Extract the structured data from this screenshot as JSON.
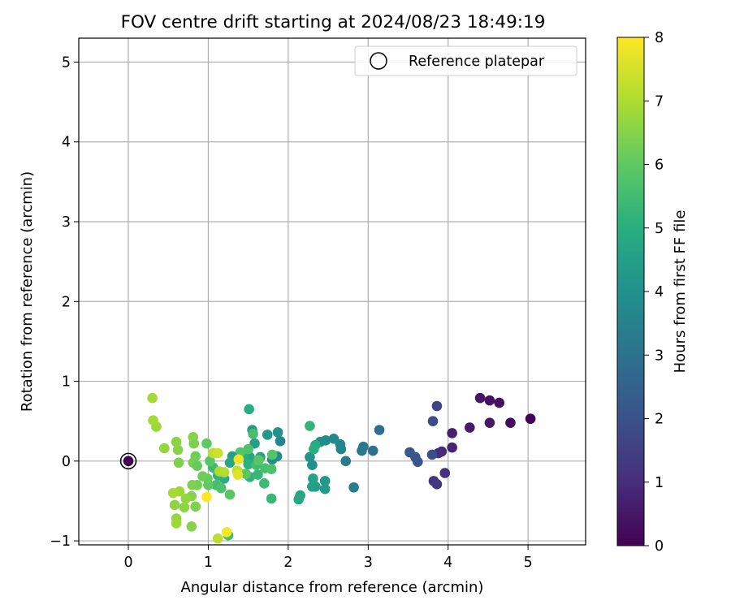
{
  "chart_data": {
    "type": "scatter",
    "title": "FOV centre drift starting at 2024/08/23 18:49:19",
    "xlabel": "Angular distance from reference (arcmin)",
    "ylabel": "Rotation from reference (arcmin)",
    "xlim": [
      -0.62,
      5.72
    ],
    "ylim": [
      -1.05,
      5.3
    ],
    "xticks": [
      0,
      1,
      2,
      3,
      4,
      5
    ],
    "yticks": [
      -1,
      0,
      1,
      2,
      3,
      4,
      5
    ],
    "xtick_labels": [
      "0",
      "1",
      "2",
      "3",
      "4",
      "5"
    ],
    "ytick_labels": [
      "−1",
      "0",
      "1",
      "2",
      "3",
      "4",
      "5"
    ],
    "grid": true,
    "legend": {
      "placement": "top-right",
      "entries": [
        "Reference platepar"
      ]
    },
    "reference_point": {
      "x": 0,
      "y": 0
    },
    "colorbar": {
      "label": "Hours from first FF file",
      "min": 0,
      "max": 8,
      "ticks": [
        0,
        1,
        2,
        3,
        4,
        5,
        6,
        7,
        8
      ],
      "tick_labels": [
        "0",
        "1",
        "2",
        "3",
        "4",
        "5",
        "6",
        "7",
        "8"
      ],
      "colormap": [
        "#440154",
        "#472d7b",
        "#3b528b",
        "#2c728e",
        "#21918c",
        "#28ae80",
        "#5ec962",
        "#addc30",
        "#fde725"
      ]
    },
    "points": [
      {
        "x": 0.0,
        "y": 0.0,
        "t": 0.0
      },
      {
        "x": 5.03,
        "y": 0.53,
        "t": 0.1
      },
      {
        "x": 4.78,
        "y": 0.48,
        "t": 0.2
      },
      {
        "x": 4.64,
        "y": 0.73,
        "t": 0.3
      },
      {
        "x": 4.52,
        "y": 0.76,
        "t": 0.35
      },
      {
        "x": 4.4,
        "y": 0.79,
        "t": 0.45
      },
      {
        "x": 4.52,
        "y": 0.48,
        "t": 0.5
      },
      {
        "x": 4.27,
        "y": 0.42,
        "t": 0.6
      },
      {
        "x": 4.05,
        "y": 0.35,
        "t": 0.7
      },
      {
        "x": 4.05,
        "y": 0.17,
        "t": 0.8
      },
      {
        "x": 3.92,
        "y": 0.12,
        "t": 0.9
      },
      {
        "x": 3.88,
        "y": 0.1,
        "t": 1.0
      },
      {
        "x": 3.96,
        "y": -0.15,
        "t": 1.1
      },
      {
        "x": 3.82,
        "y": -0.25,
        "t": 1.2
      },
      {
        "x": 3.86,
        "y": -0.29,
        "t": 1.3
      },
      {
        "x": 3.86,
        "y": 0.69,
        "t": 1.6
      },
      {
        "x": 3.81,
        "y": 0.5,
        "t": 1.8
      },
      {
        "x": 3.8,
        "y": 0.08,
        "t": 1.9
      },
      {
        "x": 3.62,
        "y": -0.01,
        "t": 2.0
      },
      {
        "x": 3.59,
        "y": 0.05,
        "t": 2.1
      },
      {
        "x": 3.52,
        "y": 0.11,
        "t": 2.2
      },
      {
        "x": 3.14,
        "y": 0.39,
        "t": 2.8
      },
      {
        "x": 3.06,
        "y": 0.13,
        "t": 3.0
      },
      {
        "x": 2.94,
        "y": 0.18,
        "t": 3.1
      },
      {
        "x": 2.92,
        "y": 0.13,
        "t": 3.2
      },
      {
        "x": 2.72,
        "y": 0.0,
        "t": 3.3
      },
      {
        "x": 2.82,
        "y": -0.33,
        "t": 3.4
      },
      {
        "x": 2.66,
        "y": 0.15,
        "t": 3.5
      },
      {
        "x": 2.65,
        "y": 0.21,
        "t": 3.6
      },
      {
        "x": 2.57,
        "y": 0.28,
        "t": 3.7
      },
      {
        "x": 2.47,
        "y": 0.26,
        "t": 3.8
      },
      {
        "x": 2.4,
        "y": 0.24,
        "t": 3.9
      },
      {
        "x": 2.3,
        "y": -0.05,
        "t": 4.0
      },
      {
        "x": 2.27,
        "y": 0.05,
        "t": 4.1
      },
      {
        "x": 2.46,
        "y": -0.25,
        "t": 4.2
      },
      {
        "x": 2.46,
        "y": -0.35,
        "t": 4.3
      },
      {
        "x": 2.34,
        "y": -0.32,
        "t": 4.4
      },
      {
        "x": 2.3,
        "y": -0.32,
        "t": 4.5
      },
      {
        "x": 2.31,
        "y": -0.22,
        "t": 4.6
      },
      {
        "x": 2.15,
        "y": -0.43,
        "t": 4.7
      },
      {
        "x": 2.13,
        "y": -0.48,
        "t": 4.8
      },
      {
        "x": 2.34,
        "y": 0.2,
        "t": 4.9
      },
      {
        "x": 2.32,
        "y": 0.15,
        "t": 5.0
      },
      {
        "x": 2.27,
        "y": 0.44,
        "t": 5.2
      },
      {
        "x": 1.9,
        "y": 0.25,
        "t": 3.6
      },
      {
        "x": 1.86,
        "y": 0.06,
        "t": 3.8
      },
      {
        "x": 1.8,
        "y": 0.02,
        "t": 3.9
      },
      {
        "x": 1.87,
        "y": 0.36,
        "t": 4.0
      },
      {
        "x": 1.74,
        "y": 0.33,
        "t": 4.2
      },
      {
        "x": 1.55,
        "y": 0.39,
        "t": 4.4
      },
      {
        "x": 1.58,
        "y": 0.22,
        "t": 4.5
      },
      {
        "x": 1.51,
        "y": 0.65,
        "t": 5.0
      },
      {
        "x": 1.65,
        "y": 0.05,
        "t": 4.6
      },
      {
        "x": 1.52,
        "y": 0.05,
        "t": 4.8
      },
      {
        "x": 1.44,
        "y": 0.05,
        "t": 5.0
      },
      {
        "x": 1.5,
        "y": -0.04,
        "t": 5.1
      },
      {
        "x": 1.52,
        "y": -0.2,
        "t": 5.2
      },
      {
        "x": 1.62,
        "y": -0.17,
        "t": 5.3
      },
      {
        "x": 1.7,
        "y": -0.28,
        "t": 5.4
      },
      {
        "x": 1.79,
        "y": -0.47,
        "t": 5.3
      },
      {
        "x": 1.6,
        "y": -0.05,
        "t": 5.5
      },
      {
        "x": 1.71,
        "y": -0.09,
        "t": 5.6
      },
      {
        "x": 1.79,
        "y": -0.1,
        "t": 5.7
      },
      {
        "x": 1.8,
        "y": 0.08,
        "t": 5.8
      },
      {
        "x": 1.63,
        "y": 0.01,
        "t": 5.9
      },
      {
        "x": 1.56,
        "y": 0.34,
        "t": 5.6
      },
      {
        "x": 1.5,
        "y": 0.15,
        "t": 5.7
      },
      {
        "x": 1.4,
        "y": 0.11,
        "t": 5.8
      },
      {
        "x": 1.47,
        "y": -0.16,
        "t": 5.9
      },
      {
        "x": 1.37,
        "y": -0.13,
        "t": 6.0
      },
      {
        "x": 1.3,
        "y": 0.06,
        "t": 4.5
      },
      {
        "x": 1.27,
        "y": -0.02,
        "t": 4.8
      },
      {
        "x": 1.2,
        "y": -0.22,
        "t": 5.0
      },
      {
        "x": 1.12,
        "y": -0.18,
        "t": 5.2
      },
      {
        "x": 1.06,
        "y": -0.08,
        "t": 5.4
      },
      {
        "x": 1.1,
        "y": -0.3,
        "t": 5.5
      },
      {
        "x": 1.16,
        "y": -0.34,
        "t": 5.7
      },
      {
        "x": 1.27,
        "y": -0.42,
        "t": 5.9
      },
      {
        "x": 1.25,
        "y": -0.93,
        "t": 5.5
      },
      {
        "x": 1.0,
        "y": -0.3,
        "t": 6.0
      },
      {
        "x": 0.99,
        "y": -0.22,
        "t": 6.1
      },
      {
        "x": 0.93,
        "y": -0.19,
        "t": 6.2
      },
      {
        "x": 0.86,
        "y": -0.3,
        "t": 6.3
      },
      {
        "x": 0.8,
        "y": -0.3,
        "t": 6.4
      },
      {
        "x": 0.79,
        "y": -0.44,
        "t": 6.5
      },
      {
        "x": 0.84,
        "y": -0.57,
        "t": 6.4
      },
      {
        "x": 0.79,
        "y": -0.82,
        "t": 6.5
      },
      {
        "x": 0.7,
        "y": -0.58,
        "t": 6.6
      },
      {
        "x": 0.72,
        "y": -0.47,
        "t": 6.7
      },
      {
        "x": 0.64,
        "y": -0.38,
        "t": 6.8
      },
      {
        "x": 0.58,
        "y": -0.55,
        "t": 6.6
      },
      {
        "x": 0.6,
        "y": -0.72,
        "t": 6.7
      },
      {
        "x": 0.6,
        "y": -0.78,
        "t": 6.8
      },
      {
        "x": 0.56,
        "y": -0.4,
        "t": 6.9
      },
      {
        "x": 0.63,
        "y": -0.02,
        "t": 6.4
      },
      {
        "x": 0.62,
        "y": 0.14,
        "t": 6.5
      },
      {
        "x": 0.6,
        "y": 0.24,
        "t": 6.6
      },
      {
        "x": 0.45,
        "y": 0.16,
        "t": 6.7
      },
      {
        "x": 0.35,
        "y": 0.43,
        "t": 6.8
      },
      {
        "x": 0.31,
        "y": 0.51,
        "t": 6.9
      },
      {
        "x": 0.3,
        "y": 0.79,
        "t": 6.9
      },
      {
        "x": 0.81,
        "y": 0.3,
        "t": 6.5
      },
      {
        "x": 0.82,
        "y": 0.22,
        "t": 6.4
      },
      {
        "x": 0.84,
        "y": 0.06,
        "t": 6.2
      },
      {
        "x": 0.81,
        "y": -0.02,
        "t": 6.3
      },
      {
        "x": 0.86,
        "y": -0.06,
        "t": 6.1
      },
      {
        "x": 0.98,
        "y": 0.22,
        "t": 6.0
      },
      {
        "x": 1.02,
        "y": 0.0,
        "t": 5.9
      },
      {
        "x": 1.06,
        "y": 0.1,
        "t": 7.2
      },
      {
        "x": 1.12,
        "y": 0.1,
        "t": 7.4
      },
      {
        "x": 1.14,
        "y": -0.13,
        "t": 7.0
      },
      {
        "x": 1.2,
        "y": -0.14,
        "t": 7.1
      },
      {
        "x": 1.36,
        "y": -0.12,
        "t": 7.3
      },
      {
        "x": 1.37,
        "y": -0.17,
        "t": 7.6
      },
      {
        "x": 1.38,
        "y": 0.02,
        "t": 7.8
      },
      {
        "x": 0.98,
        "y": -0.45,
        "t": 8.0
      },
      {
        "x": 1.23,
        "y": -0.89,
        "t": 7.9
      },
      {
        "x": 1.12,
        "y": -0.97,
        "t": 7.2
      }
    ]
  }
}
